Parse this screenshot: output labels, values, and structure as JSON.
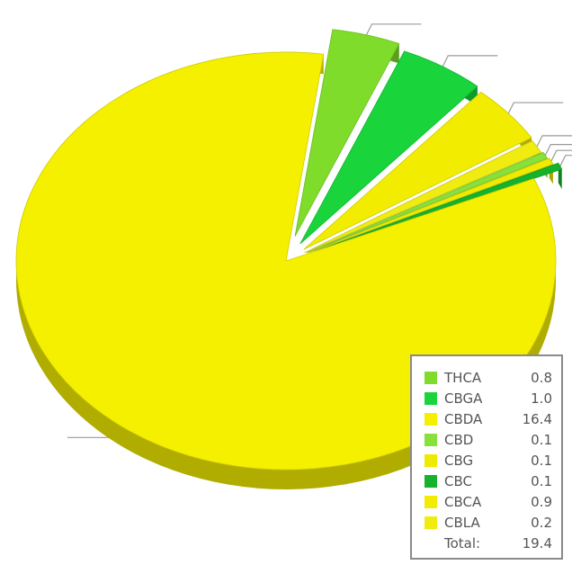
{
  "chart_data": {
    "type": "pie",
    "style": "3d-exploded",
    "categories": [
      "THCA",
      "CBGA",
      "CBDA",
      "CBD",
      "CBG",
      "CBC",
      "CBCA",
      "CBLA"
    ],
    "values": [
      0.8,
      1.0,
      16.4,
      0.1,
      0.1,
      0.1,
      0.9,
      0.2
    ],
    "colors": [
      "#7fdc2b",
      "#19d43b",
      "#f5f000",
      "#88e03a",
      "#eeea00",
      "#14b32b",
      "#f2ed00",
      "#f0ec10"
    ],
    "legend": {
      "placement": "bottom-right",
      "total_label": "Total:",
      "total_value": "19.4"
    }
  }
}
